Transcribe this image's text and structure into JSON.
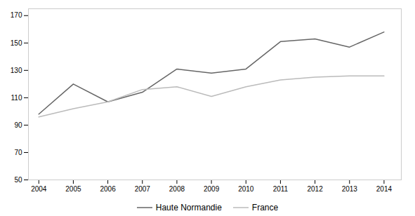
{
  "chart_data": {
    "type": "line",
    "x": [
      2004,
      2005,
      2006,
      2007,
      2008,
      2009,
      2010,
      2011,
      2012,
      2013,
      2014
    ],
    "series": [
      {
        "name": "Haute Normandie",
        "color": "#666666",
        "values": [
          98,
          120,
          107,
          114,
          131,
          128,
          131,
          151,
          153,
          147,
          158
        ]
      },
      {
        "name": "France",
        "color": "#bbbbbb",
        "values": [
          96,
          102,
          107,
          116,
          118,
          111,
          118,
          123,
          125,
          126,
          126
        ]
      }
    ],
    "xlim": [
      2003.7,
      2014.5
    ],
    "xticks": [
      2004,
      2005,
      2006,
      2007,
      2008,
      2009,
      2010,
      2011,
      2012,
      2013,
      2014
    ],
    "ylim": [
      50,
      175
    ],
    "yticks": [
      50,
      70,
      90,
      110,
      130,
      150,
      170
    ],
    "grid": false,
    "legend": "bottom"
  }
}
